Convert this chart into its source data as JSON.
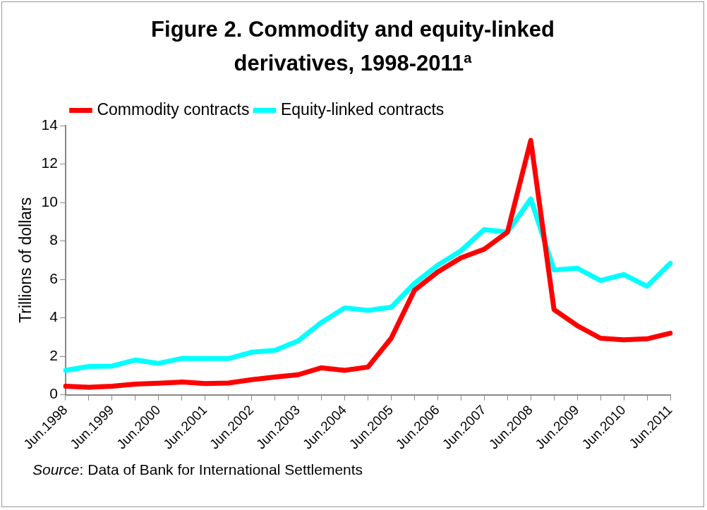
{
  "chart_data": {
    "type": "line",
    "title": "Figure 2. Commodity and equity-linked derivatives, 1998-2011$^{a}$",
    "ylabel": "Trillions of dollars",
    "categories": [
      "Jun.1998",
      null,
      "Jun.1999",
      null,
      "Jun.2000",
      null,
      "Jun.2001",
      null,
      "Jun.2002",
      null,
      "Jun.2003",
      null,
      "Jun.2004",
      null,
      "Jun.2005",
      null,
      "Jun.2006",
      null,
      "Jun.2007",
      null,
      "Jun.2008",
      null,
      "Jun.2009",
      null,
      "Jun.2010",
      null,
      "Jun.2011"
    ],
    "series": [
      {
        "name": "Commodity contracts",
        "color": "#ff0000",
        "values": [
          0.44,
          0.39,
          0.44,
          0.55,
          0.6,
          0.66,
          0.58,
          0.61,
          0.78,
          0.92,
          1.04,
          1.4,
          1.27,
          1.44,
          2.94,
          5.43,
          6.39,
          7.12,
          7.57,
          8.46,
          13.23,
          4.43,
          3.59,
          2.94,
          2.86,
          2.91,
          3.2
        ]
      },
      {
        "name": "Equity-linked contracts",
        "color": "#00ffff",
        "values": [
          1.27,
          1.47,
          1.49,
          1.81,
          1.63,
          1.89,
          1.88,
          1.88,
          2.21,
          2.31,
          2.8,
          3.76,
          4.52,
          4.39,
          4.55,
          5.79,
          6.74,
          7.49,
          8.59,
          8.46,
          10.18,
          6.49,
          6.58,
          5.94,
          6.25,
          5.64,
          6.84
        ]
      }
    ],
    "ylim": [
      0,
      14
    ],
    "yticks": [
      0,
      2,
      4,
      6,
      8,
      10,
      12,
      14
    ],
    "grid": false,
    "legend": "top left",
    "marker": "none",
    "line_style": "solid",
    "annotations": [
      "Source: Data of Bank for International Settlements"
    ]
  }
}
